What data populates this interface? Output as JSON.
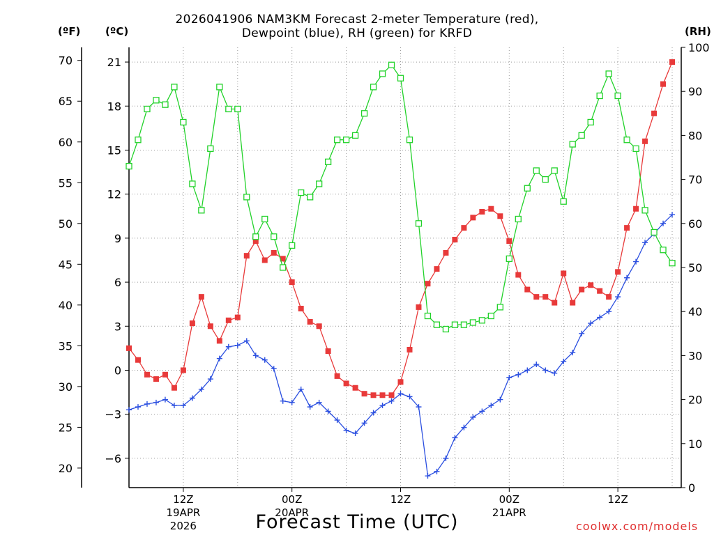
{
  "chart_data": {
    "type": "line",
    "title_line1": "2026041906 NAM3KM Forecast 2-meter Temperature (red),",
    "title_line2": "Dewpoint (blue), RH (green) for KRFD",
    "xlabel": "Forecast Time (UTC)",
    "credit": "coolwx.com/models",
    "units": {
      "fahrenheit": "(ºF)",
      "celsius": "(ºC)",
      "rh": "(RH)"
    },
    "x_hours_range": [
      0,
      61
    ],
    "y_celsius_range": [
      -8,
      22
    ],
    "y_rh_range": [
      0,
      100
    ],
    "y_fahrenheit_ticks": [
      "70",
      "65",
      "60",
      "55",
      "50",
      "45",
      "40",
      "35",
      "30",
      "25",
      "20"
    ],
    "y_fahrenheit_values": [
      70,
      65,
      60,
      55,
      50,
      45,
      40,
      35,
      30,
      25,
      20
    ],
    "y_celsius_ticks": [
      "21",
      "18",
      "15",
      "12",
      "9",
      "6",
      "3",
      "0",
      "−3",
      "−6"
    ],
    "y_celsius_values": [
      21,
      18,
      15,
      12,
      9,
      6,
      3,
      0,
      -3,
      -6
    ],
    "y_rh_ticks": [
      "100",
      "90",
      "80",
      "70",
      "60",
      "50",
      "40",
      "30",
      "20",
      "10",
      "0"
    ],
    "y_rh_values": [
      100,
      90,
      80,
      70,
      60,
      50,
      40,
      30,
      20,
      10,
      0
    ],
    "x_ticks": [
      {
        "hour": 6,
        "line1": "12Z",
        "line2": "19APR",
        "line3": "2026"
      },
      {
        "hour": 18,
        "line1": "00Z",
        "line2": "20APR",
        "line3": ""
      },
      {
        "hour": 30,
        "line1": "12Z",
        "line2": "",
        "line3": ""
      },
      {
        "hour": 42,
        "line1": "00Z",
        "line2": "21APR",
        "line3": ""
      },
      {
        "hour": 54,
        "line1": "12Z",
        "line2": "",
        "line3": ""
      }
    ],
    "x_grid_hours": [
      6,
      12,
      18,
      24,
      30,
      36,
      42,
      48,
      54,
      60
    ],
    "series": [
      {
        "name": "2-meter Temperature",
        "unit": "°C",
        "color": "#e83a3a",
        "marker": "filled-square",
        "values": [
          1.5,
          0.7,
          -0.3,
          -0.6,
          -0.3,
          -1.2,
          0.0,
          3.2,
          5.0,
          3.0,
          2.0,
          3.4,
          3.6,
          7.8,
          8.8,
          7.5,
          8.0,
          7.6,
          6.0,
          4.2,
          3.3,
          3.0,
          1.3,
          -0.4,
          -0.9,
          -1.2,
          -1.6,
          -1.7,
          -1.7,
          -1.7,
          -0.8,
          1.4,
          4.3,
          5.9,
          6.9,
          8.0,
          8.9,
          9.7,
          10.4,
          10.8,
          11.0,
          10.5,
          8.8,
          6.5,
          5.5,
          5.0,
          5.0,
          4.6,
          6.6,
          4.6,
          5.5,
          5.8,
          5.4,
          5.0,
          6.7,
          9.7,
          11.0,
          15.6,
          17.5,
          19.5,
          21.0
        ]
      },
      {
        "name": "Dewpoint",
        "unit": "°C",
        "color": "#2b4fe0",
        "marker": "plus",
        "values": [
          -2.7,
          -2.5,
          -2.3,
          -2.2,
          -2.0,
          -2.4,
          -2.4,
          -1.9,
          -1.3,
          -0.6,
          0.8,
          1.6,
          1.7,
          2.0,
          1.0,
          0.7,
          0.1,
          -2.1,
          -2.2,
          -1.3,
          -2.5,
          -2.2,
          -2.8,
          -3.4,
          -4.1,
          -4.3,
          -3.6,
          -2.9,
          -2.4,
          -2.1,
          -1.6,
          -1.8,
          -2.5,
          -7.2,
          -6.9,
          -6.0,
          -4.6,
          -3.9,
          -3.2,
          -2.8,
          -2.4,
          -2.0,
          -0.5,
          -0.3,
          0.0,
          0.4,
          0.0,
          -0.2,
          0.6,
          1.2,
          2.5,
          3.2,
          3.6,
          4.0,
          5.0,
          6.3,
          7.4,
          8.7,
          9.3,
          10.0,
          10.6
        ]
      },
      {
        "name": "RH",
        "unit": "%",
        "color": "#22d22a",
        "marker": "open-square",
        "values": [
          73,
          79,
          86,
          88,
          87,
          91,
          83,
          69,
          63,
          77,
          91,
          86,
          86,
          66,
          57,
          61,
          57,
          50,
          55,
          67,
          66,
          69,
          74,
          79,
          79,
          80,
          85,
          91,
          94,
          96,
          93,
          79,
          60,
          39,
          37,
          36,
          37,
          37,
          37.5,
          38,
          39,
          41,
          52,
          61,
          68,
          72,
          70,
          72,
          65,
          78,
          80,
          83,
          89,
          94,
          89,
          79,
          77,
          63,
          58,
          54,
          51
        ]
      }
    ]
  }
}
